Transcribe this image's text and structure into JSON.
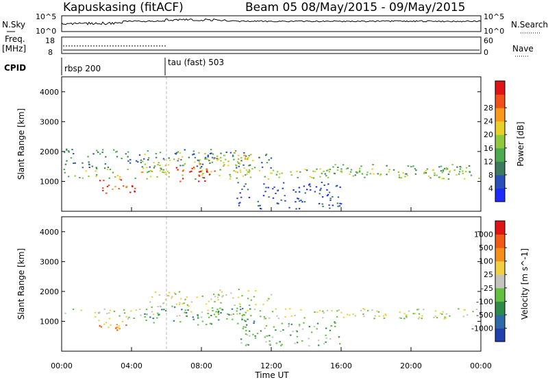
{
  "header": {
    "station": "Kapuskasing (fitACF)",
    "beam_info": "Beam 05 08/May/2015 - 09/May/2015"
  },
  "strips": {
    "nsky_label": "N.Sky",
    "nsearch_label": "N.Search",
    "nsky_ticks_left": [
      "10^5",
      "10^0"
    ],
    "nsky_ticks_right": [
      "10^5",
      "10^0"
    ],
    "freq_label_1": "Freq.",
    "freq_label_2": "[MHz]",
    "freq_ticks": [
      "18",
      "8"
    ],
    "nave_label": "Nave",
    "nave_ticks": [
      "60",
      "0"
    ],
    "cpid_label": "CPID",
    "cpid_1": "rbsp 200",
    "cpid_2": "tau (fast) 503"
  },
  "chart_data": [
    {
      "type": "heatmap",
      "name": "power",
      "ylabel": "Slant Range [km]",
      "ylim": [
        0,
        4500
      ],
      "yticks": [
        "1000",
        "2000",
        "3000",
        "4000"
      ],
      "xlim_hours": [
        0,
        24
      ],
      "colorbar_label": "Power [dB]",
      "colorbar_ticks": [
        "4",
        "8",
        "12",
        "16",
        "20",
        "24",
        "28"
      ],
      "colorbar_colors": [
        "#1e2bff",
        "#2a4fb8",
        "#3b7a5c",
        "#4caa50",
        "#8ec83c",
        "#e8d02a",
        "#f79a1a",
        "#f0501a",
        "#e01414"
      ],
      "regions": [
        {
          "x": [
            0.1,
            24
          ],
          "y": [
            1100,
            1450
          ],
          "level": 4
        },
        {
          "x": [
            0.1,
            12
          ],
          "y": [
            1450,
            2100
          ],
          "level": 2
        },
        {
          "x": [
            4.5,
            11
          ],
          "y": [
            1300,
            2000
          ],
          "level": 5
        },
        {
          "x": [
            6.5,
            9
          ],
          "y": [
            1000,
            1500
          ],
          "level": 8
        },
        {
          "x": [
            2,
            4.5
          ],
          "y": [
            600,
            1100
          ],
          "level": 7
        },
        {
          "x": [
            10,
            16
          ],
          "y": [
            100,
            1000
          ],
          "level": 1
        },
        {
          "x": [
            14,
            23.5
          ],
          "y": [
            1200,
            1600
          ],
          "level": 3
        }
      ]
    },
    {
      "type": "heatmap",
      "name": "velocity",
      "ylabel": "Slant Range [km]",
      "ylim": [
        0,
        4500
      ],
      "yticks": [
        "1000",
        "2000",
        "3000",
        "4000"
      ],
      "xlim_hours": [
        0,
        24
      ],
      "xticks": [
        "00:00",
        "04:00",
        "08:00",
        "12:00",
        "16:00",
        "20:00",
        "00:00"
      ],
      "xlabel": "Time UT",
      "colorbar_label": "Velocity [m s^-1]",
      "colorbar_ticks": [
        "1000",
        "500",
        "100",
        "25",
        "-25",
        "-100",
        "-500",
        "-1000"
      ],
      "colorbar_colors": [
        "#2040b0",
        "#2f6aa8",
        "#2e8a4a",
        "#64c040",
        "#c4c4bc",
        "#f0d040",
        "#f5901a",
        "#f05a14",
        "#e01414"
      ],
      "regions": [
        {
          "x": [
            0.1,
            24
          ],
          "y": [
            1100,
            1450
          ],
          "level": 4
        },
        {
          "x": [
            5,
            12
          ],
          "y": [
            1500,
            2100
          ],
          "level": 4
        },
        {
          "x": [
            4.5,
            11
          ],
          "y": [
            900,
            1500
          ],
          "level": 2
        },
        {
          "x": [
            2,
            4.2
          ],
          "y": [
            600,
            1100
          ],
          "level": 6
        },
        {
          "x": [
            10,
            16
          ],
          "y": [
            200,
            1000
          ],
          "level": 3
        }
      ]
    }
  ]
}
